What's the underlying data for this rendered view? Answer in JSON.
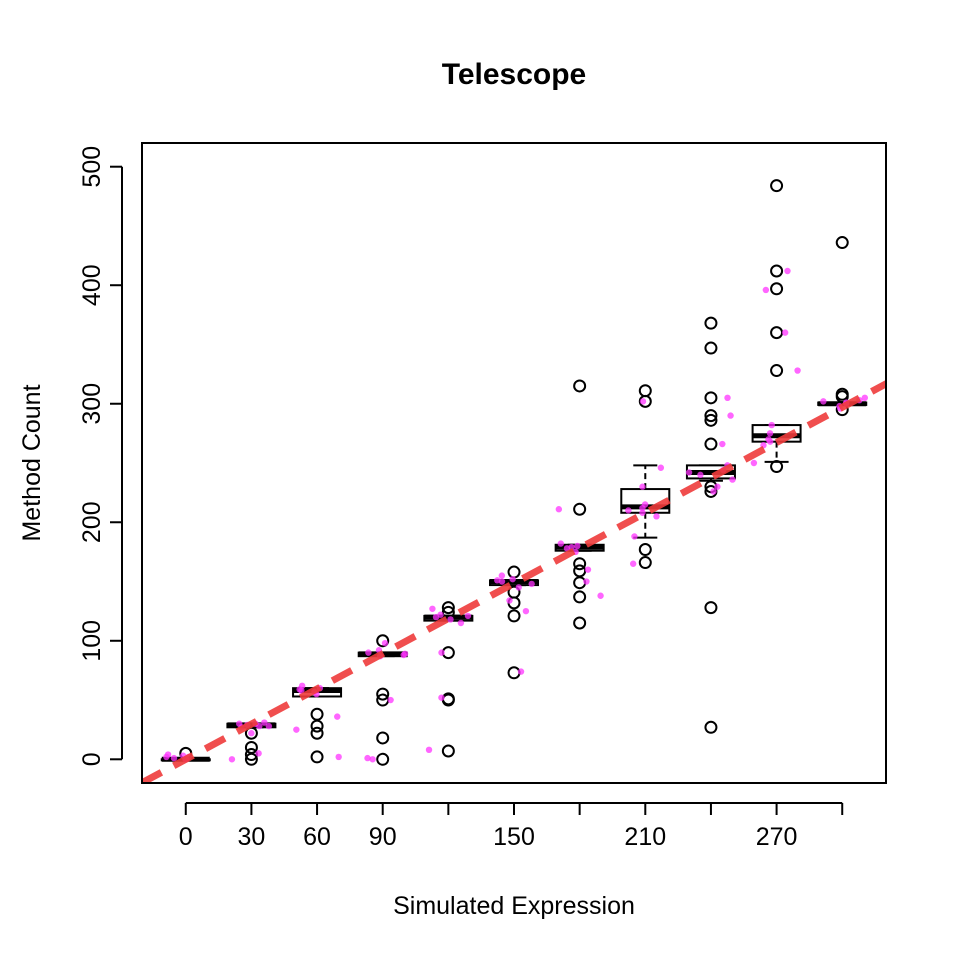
{
  "chart_data": {
    "type": "boxplot",
    "title": "Telescope",
    "xlabel": "Simulated Expression",
    "ylabel": "Method Count",
    "xlim": [
      -20,
      320
    ],
    "ylim": [
      -20,
      520
    ],
    "x_tick_labels": [
      "0",
      "30",
      "60",
      "90",
      "150",
      "210",
      "270"
    ],
    "x_tick_values": [
      0,
      30,
      60,
      90,
      150,
      210,
      270
    ],
    "y_tick_values": [
      0,
      100,
      200,
      300,
      400,
      500
    ],
    "groups": [
      {
        "x": 0,
        "q1": 0,
        "median": 0,
        "q3": 0,
        "whisker_low": 0,
        "whisker_high": 0,
        "outliers": [
          5
        ]
      },
      {
        "x": 30,
        "q1": 27,
        "median": 29,
        "q3": 30,
        "whisker_low": 27,
        "whisker_high": 30,
        "outliers": [
          22,
          10,
          4,
          0
        ]
      },
      {
        "x": 60,
        "q1": 53,
        "median": 58,
        "q3": 60,
        "whisker_low": 53,
        "whisker_high": 60,
        "outliers": [
          38,
          28,
          22,
          2
        ]
      },
      {
        "x": 90,
        "q1": 87,
        "median": 89,
        "q3": 90,
        "whisker_low": 87,
        "whisker_high": 90,
        "outliers": [
          100,
          55,
          50,
          18,
          0
        ]
      },
      {
        "x": 120,
        "q1": 117,
        "median": 120,
        "q3": 121,
        "whisker_low": 117,
        "whisker_high": 121,
        "outliers": [
          128,
          124,
          90,
          51,
          50,
          7
        ]
      },
      {
        "x": 150,
        "q1": 147,
        "median": 150,
        "q3": 151,
        "whisker_low": 147,
        "whisker_high": 151,
        "outliers": [
          158,
          141,
          132,
          121,
          73
        ]
      },
      {
        "x": 180,
        "q1": 176,
        "median": 179,
        "q3": 181,
        "whisker_low": 176,
        "whisker_high": 181,
        "outliers": [
          315,
          211,
          165,
          159,
          149,
          137,
          115
        ]
      },
      {
        "x": 210,
        "q1": 208,
        "median": 213,
        "q3": 228,
        "whisker_low": 187,
        "whisker_high": 248,
        "outliers": [
          311,
          302,
          177,
          166
        ]
      },
      {
        "x": 240,
        "q1": 237,
        "median": 242,
        "q3": 248,
        "whisker_low": 235,
        "whisker_high": 248,
        "outliers": [
          368,
          347,
          305,
          290,
          286,
          266,
          230,
          226,
          128,
          27
        ]
      },
      {
        "x": 270,
        "q1": 268,
        "median": 273,
        "q3": 282,
        "whisker_low": 251,
        "whisker_high": 282,
        "outliers": [
          484,
          412,
          397,
          360,
          328,
          247
        ]
      },
      {
        "x": 300,
        "q1": 299,
        "median": 300,
        "q3": 301,
        "whisker_low": 299,
        "whisker_high": 301,
        "outliers": [
          436,
          308,
          306,
          295
        ]
      }
    ],
    "points_color": "#ff33ff",
    "jitter_points": [
      [
        0,
        0
      ],
      [
        0,
        2
      ],
      [
        0,
        4
      ],
      [
        0,
        1
      ],
      [
        0,
        3
      ],
      [
        0,
        0
      ],
      [
        0,
        2
      ],
      [
        30,
        28
      ],
      [
        30,
        30
      ],
      [
        30,
        29
      ],
      [
        30,
        27
      ],
      [
        30,
        31
      ],
      [
        30,
        5
      ],
      [
        30,
        0
      ],
      [
        30,
        22
      ],
      [
        30,
        30
      ],
      [
        30,
        28
      ],
      [
        60,
        58
      ],
      [
        60,
        60
      ],
      [
        60,
        55
      ],
      [
        60,
        62
      ],
      [
        60,
        25
      ],
      [
        60,
        36
      ],
      [
        60,
        2
      ],
      [
        60,
        59
      ],
      [
        60,
        57
      ],
      [
        90,
        88
      ],
      [
        90,
        90
      ],
      [
        90,
        92
      ],
      [
        90,
        98
      ],
      [
        90,
        50
      ],
      [
        90,
        0
      ],
      [
        90,
        1
      ],
      [
        90,
        89
      ],
      [
        90,
        87
      ],
      [
        120,
        120
      ],
      [
        120,
        118
      ],
      [
        120,
        122
      ],
      [
        120,
        127
      ],
      [
        120,
        115
      ],
      [
        120,
        90
      ],
      [
        120,
        52
      ],
      [
        120,
        8
      ],
      [
        120,
        121
      ],
      [
        150,
        150
      ],
      [
        150,
        148
      ],
      [
        150,
        152
      ],
      [
        150,
        155
      ],
      [
        150,
        145
      ],
      [
        150,
        134
      ],
      [
        150,
        125
      ],
      [
        150,
        74
      ],
      [
        150,
        151
      ],
      [
        180,
        178
      ],
      [
        180,
        180
      ],
      [
        180,
        182
      ],
      [
        180,
        211
      ],
      [
        180,
        175
      ],
      [
        180,
        160
      ],
      [
        180,
        150
      ],
      [
        180,
        138
      ],
      [
        180,
        179
      ],
      [
        210,
        212
      ],
      [
        210,
        215
      ],
      [
        210,
        208
      ],
      [
        210,
        246
      ],
      [
        210,
        302
      ],
      [
        210,
        230
      ],
      [
        210,
        188
      ],
      [
        210,
        165
      ],
      [
        210,
        205
      ],
      [
        210,
        210
      ],
      [
        240,
        240
      ],
      [
        240,
        244
      ],
      [
        240,
        248
      ],
      [
        240,
        236
      ],
      [
        240,
        290
      ],
      [
        240,
        305
      ],
      [
        240,
        266
      ],
      [
        240,
        230
      ],
      [
        240,
        226
      ],
      [
        240,
        242
      ],
      [
        270,
        270
      ],
      [
        270,
        275
      ],
      [
        270,
        265
      ],
      [
        270,
        282
      ],
      [
        270,
        360
      ],
      [
        270,
        412
      ],
      [
        270,
        396
      ],
      [
        270,
        328
      ],
      [
        270,
        250
      ],
      [
        270,
        268
      ],
      [
        300,
        300
      ],
      [
        300,
        298
      ],
      [
        300,
        302
      ],
      [
        300,
        305
      ],
      [
        300,
        296
      ],
      [
        300,
        303
      ],
      [
        300,
        301
      ]
    ],
    "trend_line": {
      "slope": 0.99,
      "intercept": 0,
      "x_range": [
        -20,
        330
      ],
      "color": "#ee3b3b",
      "style": "dashed"
    }
  }
}
